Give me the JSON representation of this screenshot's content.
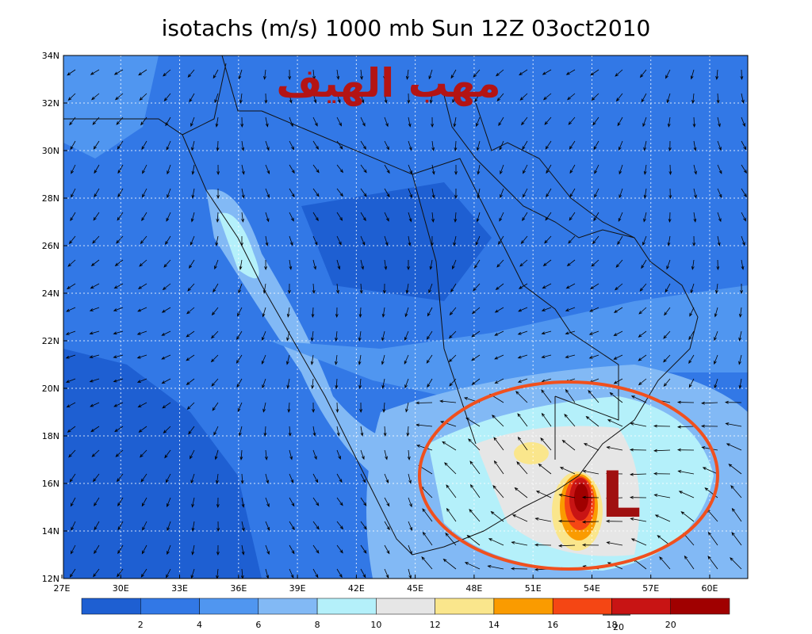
{
  "title": "isotachs (m/s) 1000 mb Sun 12Z 03oct2010",
  "lon_labels": [
    "27E",
    "30E",
    "33E",
    "36E",
    "39E",
    "42E",
    "45E",
    "48E",
    "51E",
    "54E",
    "57E",
    "60E"
  ],
  "lat_labels": [
    "12N",
    "14N",
    "16N",
    "18N",
    "20N",
    "22N",
    "24N",
    "26N",
    "28N",
    "30N",
    "32N",
    "34N"
  ],
  "annotation": "مهب الهيف",
  "low_label": "L",
  "colorbar": {
    "labels": [
      "2",
      "4",
      "6",
      "8",
      "10",
      "12",
      "14",
      "16",
      "18",
      "20"
    ],
    "colors": [
      "#1e5fd2",
      "#3278e6",
      "#5096f0",
      "#82b9f5",
      "#b4f0fa",
      "#e6e6e6",
      "#fae68c",
      "#fa9b00",
      "#f54614",
      "#c81414",
      "#a00000"
    ]
  },
  "vector_scale_label": "20"
}
